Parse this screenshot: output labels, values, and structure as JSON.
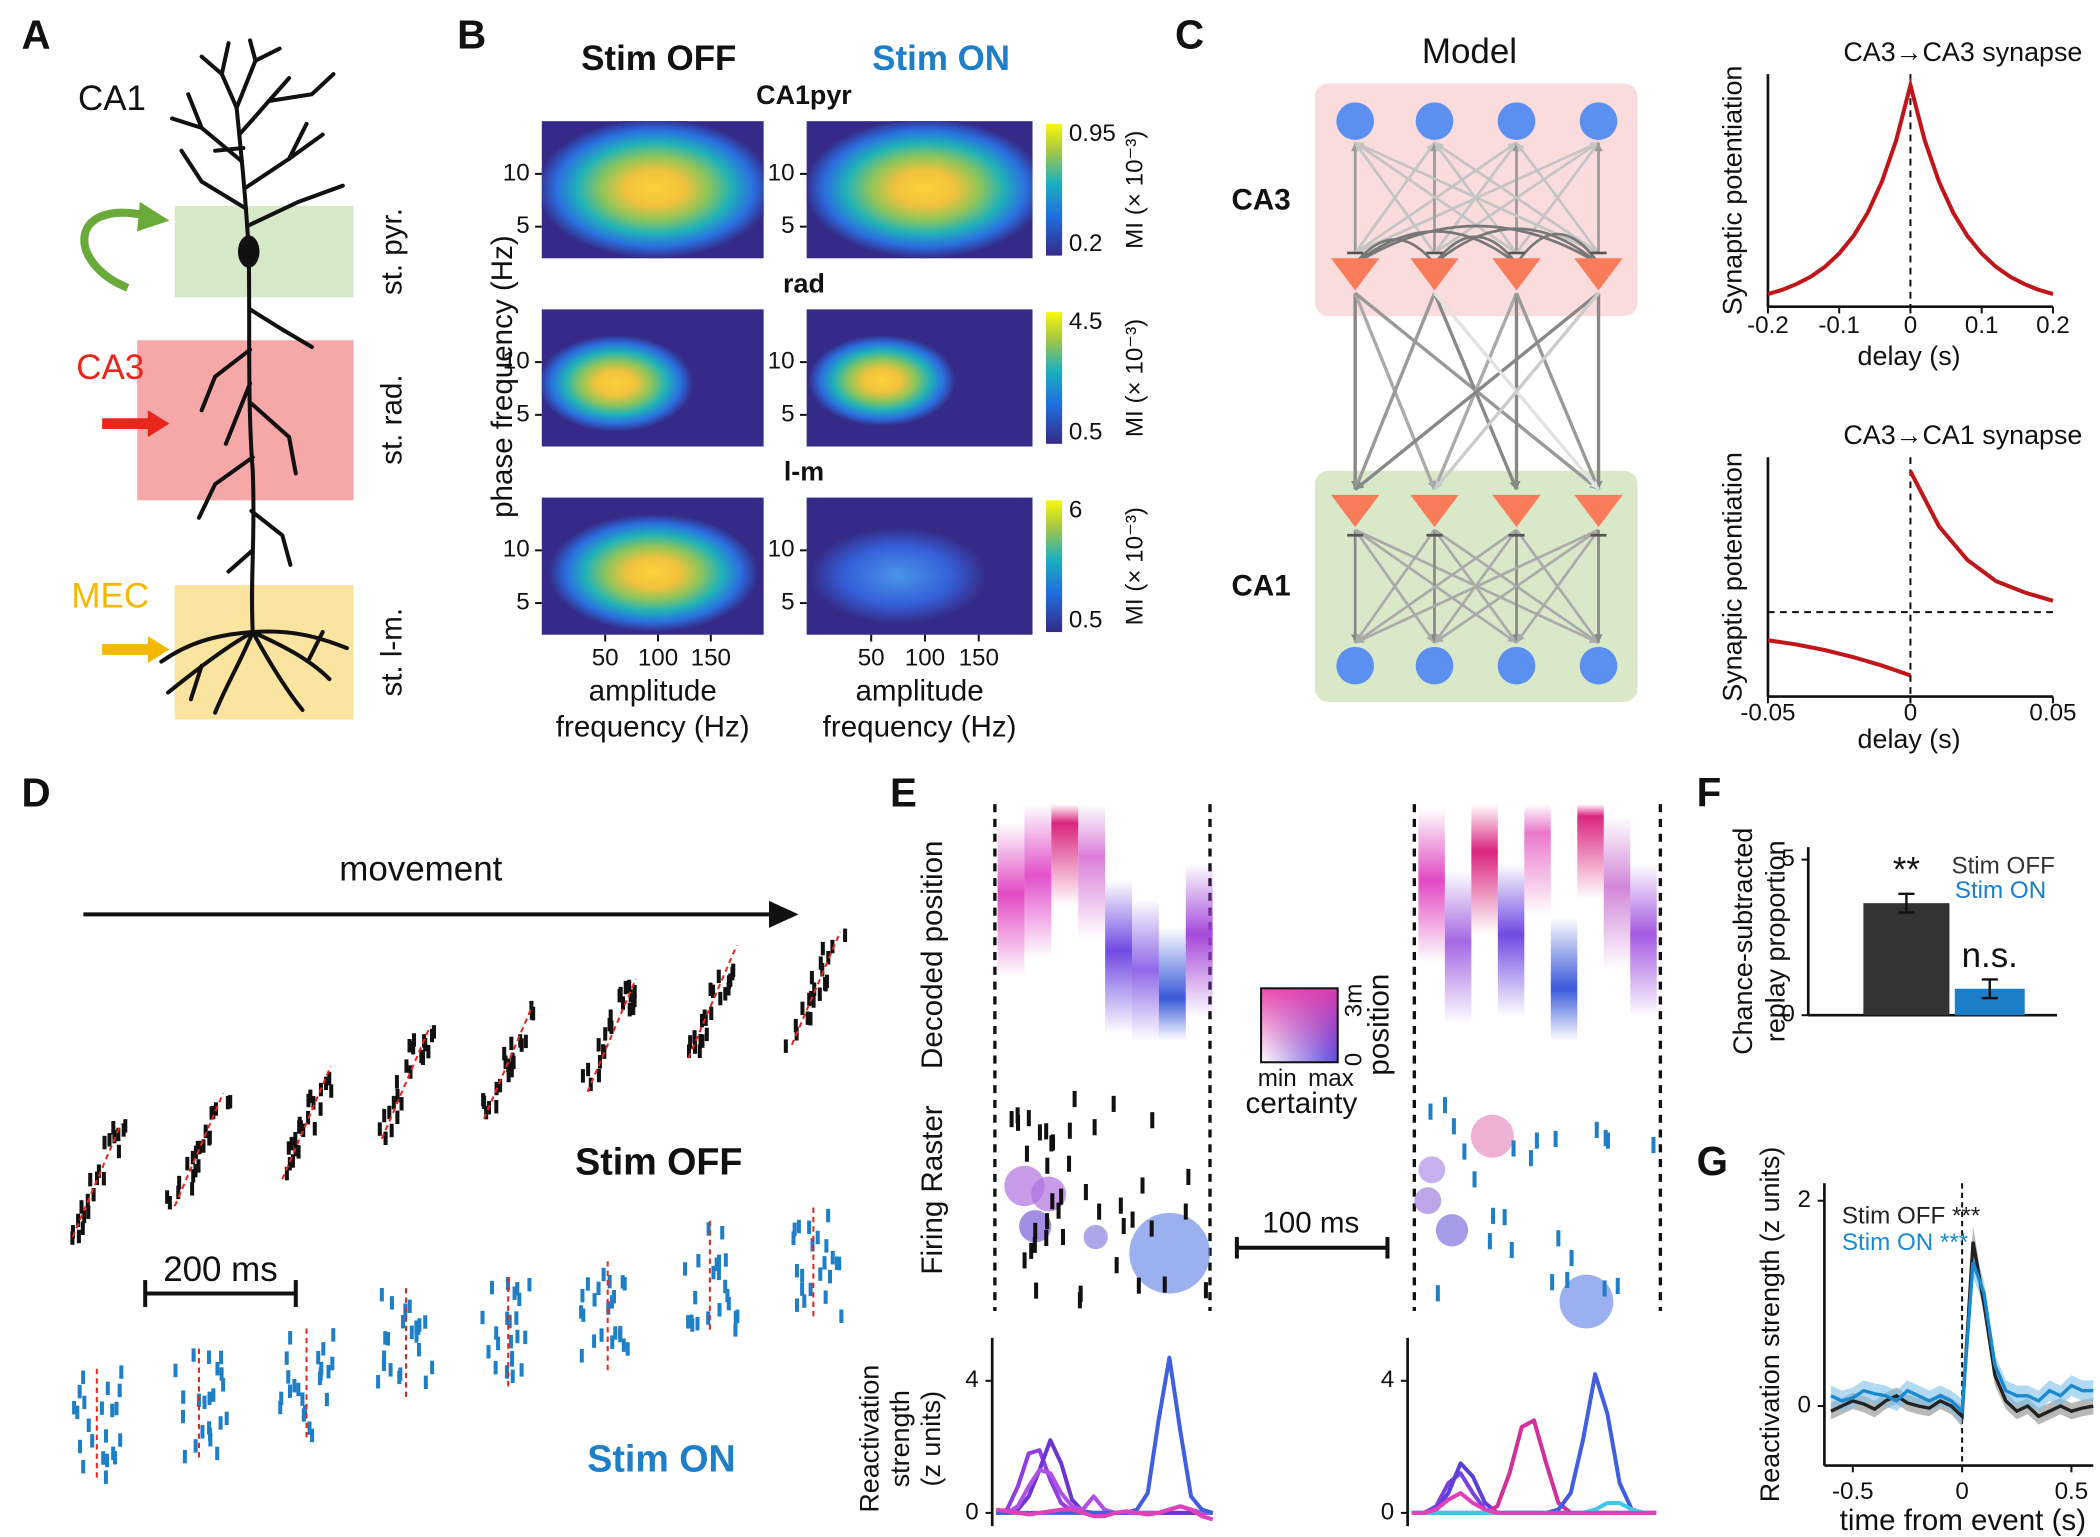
{
  "A": {
    "label": "A",
    "region": "CA1",
    "layers": [
      "st. pyr.",
      "st. rad.",
      "st. l-m."
    ],
    "inputs": [
      "CA3",
      "MEC"
    ]
  },
  "B": {
    "label": "B",
    "conditions": [
      "Stim OFF",
      "Stim ON"
    ],
    "rows": [
      {
        "title": "CA1pyr",
        "clim": [
          0.2,
          0.95
        ]
      },
      {
        "title": "rad",
        "clim": [
          0.5,
          4.5
        ]
      },
      {
        "title": "l-m",
        "clim": [
          0.5,
          6
        ]
      }
    ],
    "colorbar_label": "MI (× 10⁻³)",
    "ylabel": "phase frequency (Hz)",
    "xlabel": [
      "amplitude",
      "frequency (Hz)"
    ],
    "xlim": [
      -10,
      200
    ],
    "ylim": [
      2,
      15
    ],
    "xticks": [
      50,
      100,
      150
    ],
    "yticks": [
      5,
      10
    ]
  },
  "C": {
    "label": "C",
    "title": "Model",
    "regions": [
      "CA3",
      "CA1"
    ],
    "plots": [
      {
        "type": "line",
        "title": "CA3→CA3 synapse",
        "ylabel": "Synaptic potentiation",
        "xlabel": "delay (s)",
        "xlim": [
          -0.2,
          0.2
        ],
        "ylim": [
          0,
          1.05
        ],
        "xticks": [
          -0.2,
          -0.1,
          0,
          0.1,
          0.2
        ],
        "vline": 0,
        "series": [
          {
            "color": "#c0161b",
            "x": [
              -0.2,
              -0.18,
              -0.16,
              -0.14,
              -0.12,
              -0.1,
              -0.08,
              -0.06,
              -0.04,
              -0.02,
              0,
              0.02,
              0.04,
              0.06,
              0.08,
              0.1,
              0.12,
              0.14,
              0.16,
              0.18,
              0.2
            ],
            "values": [
              0.057,
              0.076,
              0.102,
              0.135,
              0.18,
              0.24,
              0.319,
              0.424,
              0.565,
              0.751,
              1,
              0.751,
              0.565,
              0.424,
              0.319,
              0.24,
              0.18,
              0.135,
              0.102,
              0.076,
              0.057
            ]
          }
        ]
      },
      {
        "type": "line",
        "title": "CA3→CA1 synapse",
        "ylabel": "Synaptic potentiation",
        "xlabel": "delay (s)",
        "xlim": [
          -0.05,
          0.05
        ],
        "ylim": [
          -0.6,
          1.1
        ],
        "xticks": [
          -0.05,
          0,
          0.05
        ],
        "vline": 0,
        "hline": 0,
        "series": [
          {
            "color": "#c0161b",
            "x": [
              -0.05,
              -0.04,
              -0.03,
              -0.02,
              -0.01,
              0
            ],
            "values": [
              -0.2,
              -0.23,
              -0.27,
              -0.32,
              -0.38,
              -0.45
            ]
          },
          {
            "color": "#c0161b",
            "x": [
              0,
              0.01,
              0.02,
              0.03,
              0.04,
              0.05
            ],
            "values": [
              1,
              0.61,
              0.37,
              0.22,
              0.14,
              0.08
            ]
          }
        ]
      }
    ]
  },
  "D": {
    "label": "D",
    "arrow_label": "movement",
    "conditions": [
      "Stim OFF",
      "Stim ON"
    ],
    "scale_bar": "200 ms"
  },
  "E": {
    "label": "E",
    "panels": [
      "Decoded position",
      "Firing Raster"
    ],
    "scale_bar": "100 ms",
    "colorbar": {
      "x_labels": [
        "min",
        "max"
      ],
      "x_title": "certainty",
      "y_labels": [
        "0",
        "3m"
      ],
      "y_title": "position"
    },
    "chart": {
      "type": "line",
      "ylabel": [
        "Reactivation",
        "strength",
        "(z units)"
      ],
      "ylim": [
        -0.4,
        5.3
      ],
      "yticks": [
        0,
        4
      ],
      "left": [
        {
          "color": "#8f3ee0",
          "values": [
            0,
            0.1,
            0.8,
            1.8,
            1.9,
            1.0,
            0.3,
            0.05,
            0,
            0,
            0,
            0,
            0,
            0,
            0,
            0,
            0,
            0,
            0,
            0,
            0
          ]
        },
        {
          "color": "#6a35d0",
          "values": [
            0,
            0,
            0.1,
            0.5,
            1.3,
            2.2,
            1.5,
            0.4,
            0.05,
            0,
            0,
            0,
            0,
            0,
            0,
            0,
            0,
            0,
            0,
            0,
            0
          ]
        },
        {
          "color": "#b050e8",
          "values": [
            0,
            0,
            0.2,
            0.8,
            1.3,
            1.2,
            0.6,
            0.2,
            0.1,
            0.5,
            0.1,
            0,
            0,
            0,
            0,
            0,
            0.1,
            0.2,
            0.1,
            0,
            0
          ]
        },
        {
          "color": "#3f5fe0",
          "values": [
            0,
            0,
            0,
            0,
            0,
            0,
            0,
            0,
            0,
            0,
            0,
            0,
            0,
            0.1,
            0.6,
            2.8,
            4.7,
            2.5,
            0.5,
            0.1,
            0
          ]
        },
        {
          "color": "#e040b8",
          "values": [
            0.1,
            0.05,
            0,
            -0.05,
            0,
            0.05,
            0.1,
            0.1,
            0,
            -0.1,
            -0.1,
            0,
            0.05,
            0,
            -0.05,
            0,
            0.1,
            0.2,
            0.1,
            -0.1,
            -0.2
          ]
        }
      ],
      "right": [
        {
          "color": "#7a40e0",
          "values": [
            0,
            0,
            0.2,
            0.9,
            1.2,
            0.6,
            0.1,
            0,
            0,
            0,
            0,
            0,
            0,
            0,
            0,
            0,
            0,
            0,
            0,
            0,
            0
          ]
        },
        {
          "color": "#5a40d8",
          "values": [
            0,
            0,
            0.1,
            0.6,
            1.5,
            1.1,
            0.3,
            0,
            0,
            0,
            0,
            0,
            0,
            0,
            0,
            0,
            0,
            0,
            0,
            0,
            0
          ]
        },
        {
          "color": "#d0309a",
          "values": [
            0,
            0,
            0,
            0,
            0,
            0,
            0,
            0.2,
            1.2,
            2.6,
            2.8,
            1.5,
            0.3,
            0,
            0,
            0,
            0,
            0,
            0,
            0,
            0
          ]
        },
        {
          "color": "#3f5fe0",
          "values": [
            0,
            0,
            0,
            0,
            0,
            0,
            0,
            0,
            0,
            0,
            0,
            0,
            0.1,
            0.6,
            2.2,
            4.2,
            3.0,
            0.9,
            0.1,
            0,
            0
          ]
        },
        {
          "color": "#40c8e8",
          "values": [
            0,
            0,
            0,
            0,
            0,
            0,
            0,
            0,
            0,
            0,
            0,
            0,
            0,
            0,
            0,
            0.1,
            0.3,
            0.3,
            0.1,
            0,
            0
          ]
        },
        {
          "color": "#e040b8",
          "values": [
            0,
            0,
            0.1,
            0.4,
            0.6,
            0.3,
            0.1,
            0,
            0,
            0,
            0,
            0,
            0,
            0,
            0,
            0,
            0,
            0,
            0,
            0,
            0
          ]
        }
      ]
    }
  },
  "F": {
    "label": "F",
    "chart": {
      "type": "bar",
      "ylabel": [
        "Chance-subtracted",
        "replay proportion"
      ],
      "categories": [
        "Stim OFF",
        "Stim ON"
      ],
      "colors": [
        "#333333",
        "#1a7fc8"
      ],
      "values": [
        3.6,
        0.85
      ],
      "errors": [
        0.3,
        0.3
      ],
      "annotations": [
        "**",
        "n.s."
      ],
      "ylim": [
        0,
        5.4
      ],
      "yticks": [
        0,
        5
      ]
    }
  },
  "G": {
    "label": "G",
    "chart": {
      "type": "line",
      "xlabel": "time from event (s)",
      "ylabel": "Reactivation strength (z units)",
      "xlim": [
        -0.63,
        0.6
      ],
      "ylim": [
        -0.58,
        2.17
      ],
      "xticks": [
        -0.5,
        0,
        0.5
      ],
      "yticks": [
        0,
        2
      ],
      "vline": 0,
      "x": [
        -0.6,
        -0.55,
        -0.5,
        -0.45,
        -0.4,
        -0.35,
        -0.3,
        -0.25,
        -0.2,
        -0.15,
        -0.1,
        -0.05,
        0,
        0.05,
        0.1,
        0.15,
        0.2,
        0.25,
        0.3,
        0.35,
        0.4,
        0.45,
        0.5,
        0.55,
        0.6
      ],
      "series": [
        {
          "name": "Stim OFF ***",
          "color": "#222222",
          "band": "#888888",
          "values": [
            -0.05,
            0,
            0.05,
            0.02,
            -0.03,
            0.05,
            0.1,
            0.03,
            0,
            -0.02,
            0.05,
            0,
            -0.1,
            1.6,
            1.0,
            0.3,
            0.05,
            -0.05,
            0,
            -0.1,
            -0.05,
            0,
            -0.05,
            -0.02,
            0
          ],
          "errors": [
            0.08,
            0.08,
            0.08,
            0.08,
            0.08,
            0.08,
            0.08,
            0.08,
            0.08,
            0.08,
            0.08,
            0.08,
            0.1,
            0.15,
            0.12,
            0.1,
            0.08,
            0.08,
            0.08,
            0.08,
            0.08,
            0.08,
            0.08,
            0.08,
            0.08
          ]
        },
        {
          "name": "Stim ON ***",
          "color": "#1a8ad0",
          "band": "#7fc0ea",
          "values": [
            0.1,
            0.05,
            0.08,
            0.15,
            0.12,
            0.1,
            0.05,
            0.15,
            0.1,
            0.05,
            0.1,
            0.05,
            -0.05,
            1.4,
            1.1,
            0.4,
            0.15,
            0.1,
            0.1,
            0.05,
            0.15,
            0.1,
            0.2,
            0.15,
            0.15
          ],
          "errors": [
            0.1,
            0.1,
            0.1,
            0.1,
            0.1,
            0.1,
            0.1,
            0.1,
            0.1,
            0.1,
            0.1,
            0.1,
            0.12,
            0.15,
            0.12,
            0.1,
            0.1,
            0.1,
            0.1,
            0.1,
            0.1,
            0.1,
            0.1,
            0.1,
            0.1
          ]
        }
      ]
    }
  }
}
